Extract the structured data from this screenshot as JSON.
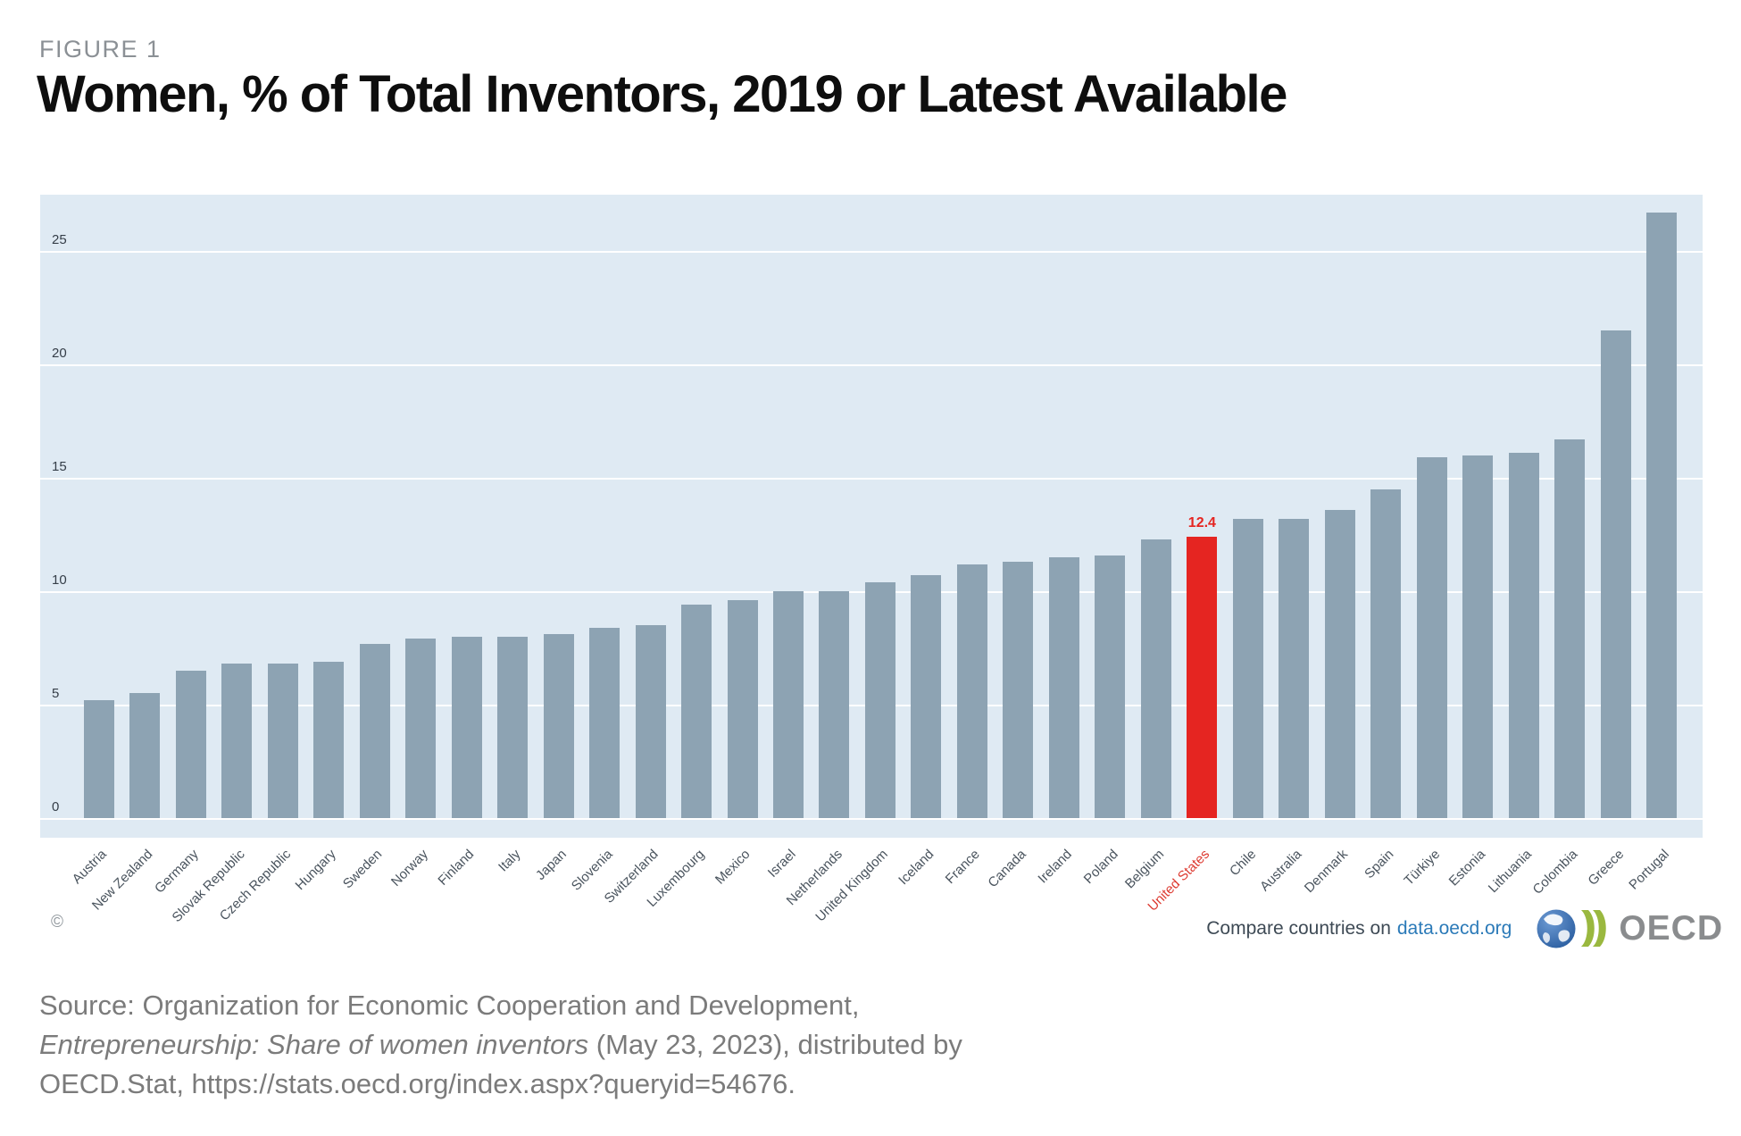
{
  "header": {
    "figure_label": "FIGURE 1",
    "title": "Women, % of Total Inventors, 2019 or Latest Available"
  },
  "chart_data": {
    "type": "bar",
    "title": "Women, % of Total Inventors, 2019 or Latest Available",
    "categories": [
      "Austria",
      "New Zealand",
      "Germany",
      "Slovak Republic",
      "Czech Republic",
      "Hungary",
      "Sweden",
      "Norway",
      "Finland",
      "Italy",
      "Japan",
      "Slovenia",
      "Switzerland",
      "Luxembourg",
      "Mexico",
      "Israel",
      "Netherlands",
      "United Kingdom",
      "Iceland",
      "France",
      "Canada",
      "Ireland",
      "Poland",
      "Belgium",
      "United States",
      "Chile",
      "Australia",
      "Denmark",
      "Spain",
      "Türkiye",
      "Estonia",
      "Lithuania",
      "Colombia",
      "Greece",
      "Portugal"
    ],
    "values": [
      5.2,
      5.5,
      6.5,
      6.8,
      6.8,
      6.9,
      7.7,
      7.9,
      8.0,
      8.0,
      8.1,
      8.4,
      8.5,
      9.4,
      9.6,
      10.0,
      10.0,
      10.4,
      10.7,
      11.2,
      11.3,
      11.5,
      11.6,
      12.3,
      12.4,
      13.2,
      13.2,
      13.6,
      14.5,
      15.9,
      16.0,
      16.1,
      16.7,
      21.5,
      26.7
    ],
    "highlight_country": "United States",
    "highlight_value_label": "12.4",
    "xlabel": "",
    "ylabel": "",
    "ylim": [
      0,
      27.5
    ],
    "yticks": [
      0,
      5,
      10,
      15,
      20,
      25
    ],
    "grid": true,
    "legend": "none",
    "colors": {
      "bar": "#8da3b3",
      "highlight": "#e52521",
      "plot_background": "#dfeaf3",
      "gridline": "#ffffff"
    }
  },
  "chart_footer": {
    "copyright": "©",
    "compare_text": "Compare countries on",
    "compare_link": "data.oecd.org",
    "oecd_wordmark": "OECD"
  },
  "source": {
    "line1": "Source: Organization for Economic Cooperation and Development,",
    "line2_italic": "Entrepreneurship: Share of women inventors",
    "line2_rest": " (May 23, 2023), distributed by",
    "line3": "OECD.Stat, https://stats.oecd.org/index.aspx?queryid=54676."
  }
}
